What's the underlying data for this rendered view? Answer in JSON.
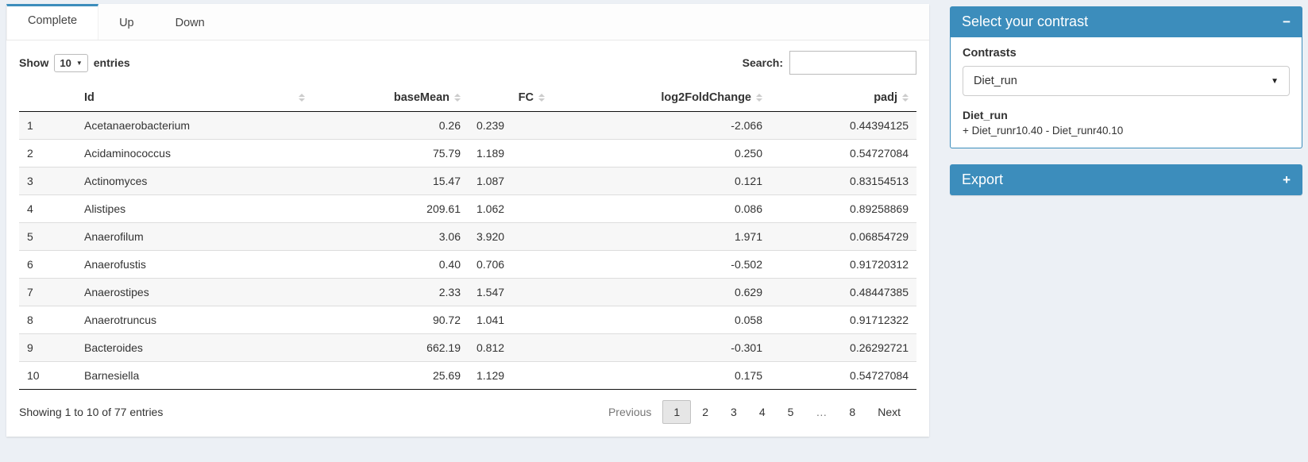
{
  "tabs": [
    {
      "label": "Complete",
      "active": true
    },
    {
      "label": "Up",
      "active": false
    },
    {
      "label": "Down",
      "active": false
    }
  ],
  "controls": {
    "show_label": "Show",
    "page_length": "10",
    "entries_label": "entries",
    "search_label": "Search:",
    "search_value": ""
  },
  "icons": {
    "caret": "▼",
    "collapse": "−",
    "expand": "+"
  },
  "table": {
    "columns": [
      "",
      "Id",
      "baseMean",
      "FC",
      "log2FoldChange",
      "padj"
    ],
    "rows": [
      {
        "n": "1",
        "id": "Acetanaerobacterium",
        "baseMean": "0.26",
        "fc": "0.239",
        "log2fc": "-2.066",
        "padj": "0.44394125"
      },
      {
        "n": "2",
        "id": "Acidaminococcus",
        "baseMean": "75.79",
        "fc": "1.189",
        "log2fc": "0.250",
        "padj": "0.54727084"
      },
      {
        "n": "3",
        "id": "Actinomyces",
        "baseMean": "15.47",
        "fc": "1.087",
        "log2fc": "0.121",
        "padj": "0.83154513"
      },
      {
        "n": "4",
        "id": "Alistipes",
        "baseMean": "209.61",
        "fc": "1.062",
        "log2fc": "0.086",
        "padj": "0.89258869"
      },
      {
        "n": "5",
        "id": "Anaerofilum",
        "baseMean": "3.06",
        "fc": "3.920",
        "log2fc": "1.971",
        "padj": "0.06854729"
      },
      {
        "n": "6",
        "id": "Anaerofustis",
        "baseMean": "0.40",
        "fc": "0.706",
        "log2fc": "-0.502",
        "padj": "0.91720312"
      },
      {
        "n": "7",
        "id": "Anaerostipes",
        "baseMean": "2.33",
        "fc": "1.547",
        "log2fc": "0.629",
        "padj": "0.48447385"
      },
      {
        "n": "8",
        "id": "Anaerotruncus",
        "baseMean": "90.72",
        "fc": "1.041",
        "log2fc": "0.058",
        "padj": "0.91712322"
      },
      {
        "n": "9",
        "id": "Bacteroides",
        "baseMean": "662.19",
        "fc": "0.812",
        "log2fc": "-0.301",
        "padj": "0.26292721"
      },
      {
        "n": "10",
        "id": "Barnesiella",
        "baseMean": "25.69",
        "fc": "1.129",
        "log2fc": "0.175",
        "padj": "0.54727084"
      }
    ]
  },
  "footer": {
    "info": "Showing 1 to 10 of 77 entries",
    "pagination": [
      "Previous",
      "1",
      "2",
      "3",
      "4",
      "5",
      "…",
      "8",
      "Next"
    ]
  },
  "contrast_panel": {
    "title": "Select your contrast",
    "contrasts_label": "Contrasts",
    "selected_contrast": "Diet_run",
    "contrast_name": "Diet_run",
    "contrast_formula": "+ Diet_runr10.40 - Diet_runr40.10"
  },
  "export_panel": {
    "title": "Export"
  },
  "colors": {
    "primary": "#3c8dbc",
    "page_bg": "#ecf0f5"
  }
}
